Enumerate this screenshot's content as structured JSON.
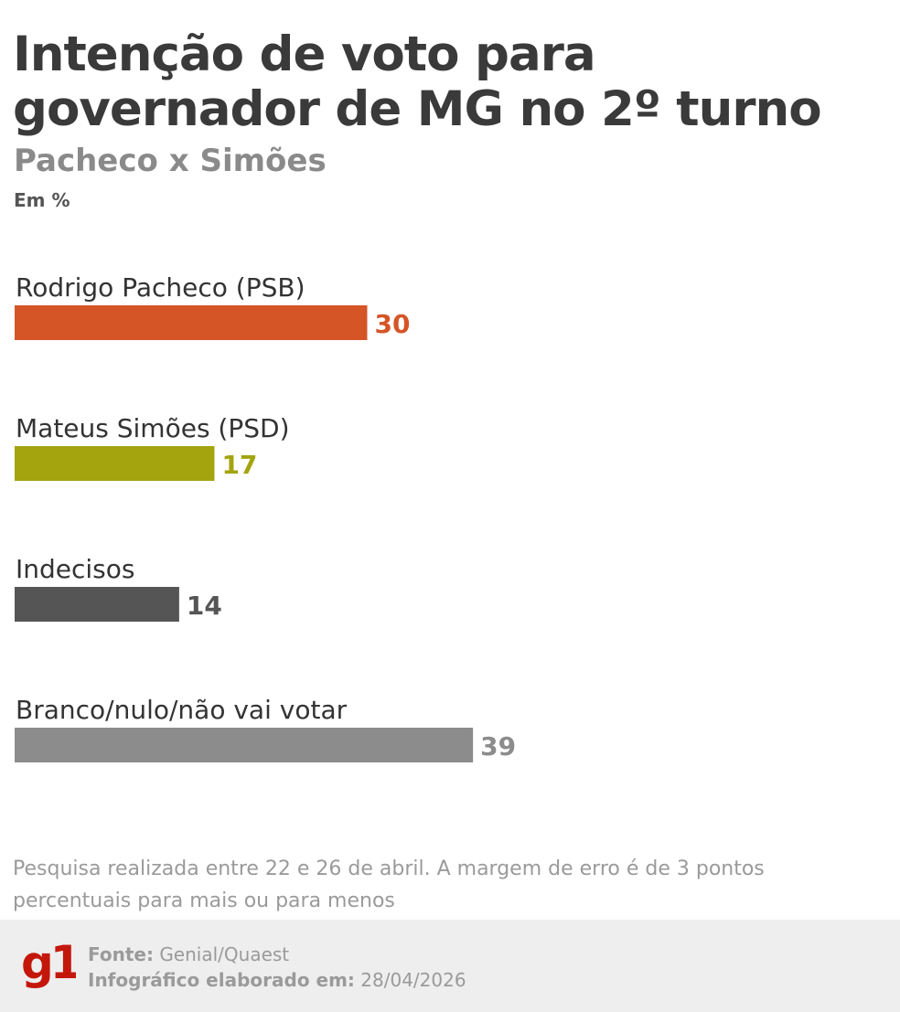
{
  "title": "Intenção de voto para governador de MG no 2º turno",
  "subtitle": "Pacheco x Simões",
  "unit": "Em %",
  "chart_data": {
    "type": "bar",
    "orientation": "horizontal",
    "title": "Intenção de voto para governador de MG no 2º turno",
    "subtitle": "Pacheco x Simões",
    "unit": "Em %",
    "categories": [
      "Rodrigo Pacheco (PSB)",
      "Mateus Simões (PSD)",
      "Indecisos",
      "Branco/nulo/não vai votar"
    ],
    "values": [
      30,
      17,
      14,
      39
    ],
    "colors": [
      "#d55527",
      "#a3a40e",
      "#555555",
      "#8c8c8c"
    ],
    "value_label_colors": [
      "#d55527",
      "#a3a40e",
      "#555555",
      "#8c8c8c"
    ],
    "xlim": [
      0,
      39
    ],
    "grid": false,
    "legend": "none"
  },
  "note": "Pesquisa realizada entre 22 e 26 de abril. A margem de erro é de 3 pontos percentuais para mais ou para menos",
  "footer": {
    "logo_text": "g1",
    "source_label": "Fonte:",
    "source_value": "Genial/Quaest",
    "date_label": "Infográfico elaborado em:",
    "date_value": "28/04/2026",
    "logo_color": "#c4170c"
  }
}
